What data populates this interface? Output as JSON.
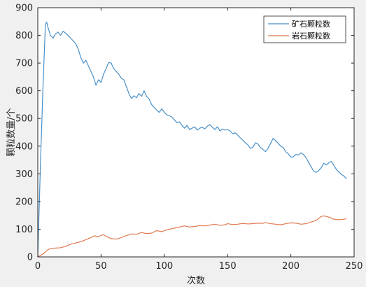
{
  "chart_data": {
    "type": "line",
    "title": "",
    "xlabel": "次数",
    "ylabel": "颗粒数量/个",
    "xlim": [
      0,
      250
    ],
    "ylim": [
      0,
      900
    ],
    "xticks": [
      0,
      50,
      100,
      150,
      200,
      250
    ],
    "yticks": [
      0,
      100,
      200,
      300,
      400,
      500,
      600,
      700,
      800,
      900
    ],
    "grid": false,
    "legend_position": "top-right",
    "series": [
      {
        "name": "矿石颗粒数",
        "color": "#4a90c8",
        "points": [
          [
            0,
            0
          ],
          [
            2,
            320
          ],
          [
            4,
            600
          ],
          [
            6,
            840
          ],
          [
            7,
            848
          ],
          [
            8,
            830
          ],
          [
            10,
            800
          ],
          [
            12,
            790
          ],
          [
            14,
            805
          ],
          [
            16,
            812
          ],
          [
            18,
            800
          ],
          [
            20,
            815
          ],
          [
            22,
            808
          ],
          [
            24,
            800
          ],
          [
            26,
            790
          ],
          [
            28,
            780
          ],
          [
            30,
            770
          ],
          [
            32,
            750
          ],
          [
            34,
            720
          ],
          [
            36,
            700
          ],
          [
            38,
            710
          ],
          [
            40,
            690
          ],
          [
            42,
            670
          ],
          [
            44,
            650
          ],
          [
            46,
            620
          ],
          [
            48,
            640
          ],
          [
            50,
            630
          ],
          [
            52,
            660
          ],
          [
            54,
            680
          ],
          [
            56,
            702
          ],
          [
            58,
            700
          ],
          [
            60,
            680
          ],
          [
            62,
            670
          ],
          [
            64,
            660
          ],
          [
            66,
            645
          ],
          [
            68,
            640
          ],
          [
            70,
            615
          ],
          [
            72,
            590
          ],
          [
            74,
            572
          ],
          [
            76,
            582
          ],
          [
            78,
            575
          ],
          [
            80,
            590
          ],
          [
            82,
            580
          ],
          [
            84,
            600
          ],
          [
            86,
            580
          ],
          [
            88,
            570
          ],
          [
            90,
            550
          ],
          [
            92,
            540
          ],
          [
            94,
            530
          ],
          [
            96,
            522
          ],
          [
            98,
            535
          ],
          [
            100,
            522
          ],
          [
            102,
            513
          ],
          [
            104,
            510
          ],
          [
            106,
            505
          ],
          [
            108,
            495
          ],
          [
            110,
            485
          ],
          [
            112,
            488
          ],
          [
            114,
            475
          ],
          [
            116,
            465
          ],
          [
            118,
            475
          ],
          [
            120,
            460
          ],
          [
            122,
            465
          ],
          [
            124,
            470
          ],
          [
            126,
            458
          ],
          [
            128,
            465
          ],
          [
            130,
            468
          ],
          [
            132,
            462
          ],
          [
            134,
            472
          ],
          [
            136,
            478
          ],
          [
            138,
            468
          ],
          [
            140,
            460
          ],
          [
            142,
            470
          ],
          [
            144,
            455
          ],
          [
            146,
            462
          ],
          [
            148,
            458
          ],
          [
            150,
            460
          ],
          [
            152,
            455
          ],
          [
            154,
            445
          ],
          [
            156,
            448
          ],
          [
            158,
            440
          ],
          [
            160,
            430
          ],
          [
            162,
            422
          ],
          [
            164,
            412
          ],
          [
            166,
            405
          ],
          [
            168,
            392
          ],
          [
            170,
            396
          ],
          [
            172,
            412
          ],
          [
            174,
            408
          ],
          [
            176,
            395
          ],
          [
            178,
            388
          ],
          [
            180,
            380
          ],
          [
            182,
            392
          ],
          [
            184,
            410
          ],
          [
            186,
            428
          ],
          [
            188,
            420
          ],
          [
            190,
            410
          ],
          [
            192,
            400
          ],
          [
            194,
            395
          ],
          [
            196,
            380
          ],
          [
            198,
            372
          ],
          [
            200,
            360
          ],
          [
            202,
            362
          ],
          [
            204,
            370
          ],
          [
            206,
            368
          ],
          [
            208,
            376
          ],
          [
            210,
            370
          ],
          [
            212,
            358
          ],
          [
            214,
            342
          ],
          [
            216,
            326
          ],
          [
            218,
            310
          ],
          [
            220,
            305
          ],
          [
            222,
            312
          ],
          [
            224,
            322
          ],
          [
            226,
            338
          ],
          [
            228,
            332
          ],
          [
            230,
            340
          ],
          [
            232,
            345
          ],
          [
            234,
            330
          ],
          [
            236,
            316
          ],
          [
            238,
            306
          ],
          [
            240,
            298
          ],
          [
            242,
            292
          ],
          [
            244,
            282
          ]
        ]
      },
      {
        "name": "岩石颗粒数",
        "color": "#e07a50",
        "points": [
          [
            0,
            0
          ],
          [
            4,
            10
          ],
          [
            6,
            18
          ],
          [
            8,
            26
          ],
          [
            10,
            30
          ],
          [
            14,
            32
          ],
          [
            18,
            33
          ],
          [
            22,
            38
          ],
          [
            26,
            46
          ],
          [
            30,
            50
          ],
          [
            34,
            55
          ],
          [
            38,
            62
          ],
          [
            42,
            70
          ],
          [
            45,
            76
          ],
          [
            48,
            73
          ],
          [
            50,
            78
          ],
          [
            52,
            80
          ],
          [
            55,
            72
          ],
          [
            58,
            66
          ],
          [
            62,
            64
          ],
          [
            66,
            70
          ],
          [
            70,
            77
          ],
          [
            74,
            83
          ],
          [
            78,
            82
          ],
          [
            82,
            88
          ],
          [
            86,
            84
          ],
          [
            90,
            86
          ],
          [
            94,
            95
          ],
          [
            98,
            91
          ],
          [
            100,
            95
          ],
          [
            104,
            100
          ],
          [
            108,
            104
          ],
          [
            112,
            108
          ],
          [
            116,
            112
          ],
          [
            120,
            108
          ],
          [
            124,
            110
          ],
          [
            128,
            113
          ],
          [
            132,
            112
          ],
          [
            136,
            115
          ],
          [
            140,
            118
          ],
          [
            144,
            114
          ],
          [
            148,
            116
          ],
          [
            150,
            120
          ],
          [
            154,
            117
          ],
          [
            158,
            118
          ],
          [
            162,
            121
          ],
          [
            166,
            119
          ],
          [
            170,
            120
          ],
          [
            174,
            122
          ],
          [
            178,
            121
          ],
          [
            180,
            124
          ],
          [
            184,
            120
          ],
          [
            188,
            118
          ],
          [
            192,
            116
          ],
          [
            196,
            120
          ],
          [
            200,
            123
          ],
          [
            204,
            122
          ],
          [
            208,
            118
          ],
          [
            212,
            120
          ],
          [
            216,
            126
          ],
          [
            220,
            132
          ],
          [
            224,
            146
          ],
          [
            226,
            148
          ],
          [
            230,
            144
          ],
          [
            234,
            136
          ],
          [
            238,
            134
          ],
          [
            242,
            136
          ],
          [
            244,
            138
          ]
        ]
      }
    ]
  }
}
